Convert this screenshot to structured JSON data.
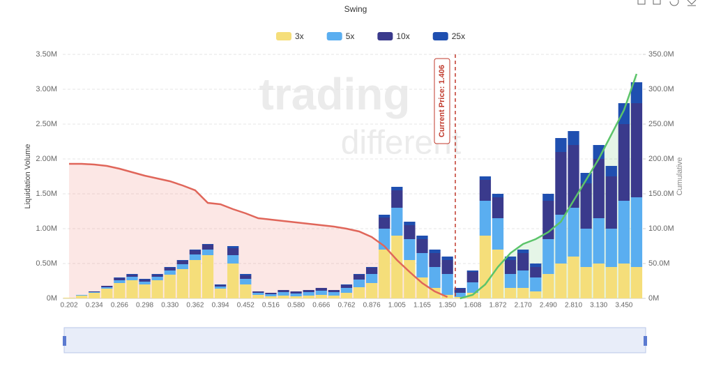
{
  "chart_data": {
    "type": "bar",
    "title": "Swing",
    "y_label": "Liquidation Volume",
    "y2_label": "Cumulative",
    "current_price_label": "Current Price: 1.406",
    "watermark": [
      "trading",
      "different"
    ],
    "stacked": true,
    "categories": [
      "0.202",
      null,
      "0.234",
      null,
      "0.266",
      null,
      "0.298",
      null,
      "0.330",
      null,
      "0.362",
      null,
      "0.394",
      null,
      "0.452",
      null,
      "0.516",
      null,
      "0.580",
      null,
      "0.666",
      null,
      "0.762",
      null,
      "0.876",
      null,
      "1.005",
      null,
      "1.165",
      null,
      "1.350",
      null,
      "1.608",
      null,
      "1.872",
      null,
      "2.170",
      null,
      "2.490",
      null,
      "2.810",
      null,
      "3.130",
      null,
      "3.450",
      null
    ],
    "ylim": [
      0,
      3.5
    ],
    "yticks": [
      {
        "value": 0,
        "label": "0M"
      },
      {
        "value": 0.5,
        "label": "0.50M"
      },
      {
        "value": 1,
        "label": "1.00M"
      },
      {
        "value": 1.5,
        "label": "1.50M"
      },
      {
        "value": 2,
        "label": "2.00M"
      },
      {
        "value": 2.5,
        "label": "2.50M"
      },
      {
        "value": 3,
        "label": "3.00M"
      },
      {
        "value": 3.5,
        "label": "3.50M"
      }
    ],
    "y2lim": [
      0,
      350
    ],
    "y2ticks": [
      {
        "value": 0,
        "label": "0M"
      },
      {
        "value": 50,
        "label": "50.0M"
      },
      {
        "value": 100,
        "label": "100.0M"
      },
      {
        "value": 150,
        "label": "150.0M"
      },
      {
        "value": 200,
        "label": "200.0M"
      },
      {
        "value": 250,
        "label": "250.0M"
      },
      {
        "value": 300,
        "label": "300.0M"
      },
      {
        "value": 350,
        "label": "350.0M"
      }
    ],
    "grid": true,
    "series": [
      {
        "name": "3x",
        "color": "#f5de7a",
        "values": [
          0.01,
          0.04,
          0.08,
          0.14,
          0.22,
          0.26,
          0.2,
          0.26,
          0.34,
          0.42,
          0.55,
          0.62,
          0.14,
          0.5,
          0.2,
          0.05,
          0.03,
          0.04,
          0.03,
          0.04,
          0.05,
          0.04,
          0.08,
          0.16,
          0.22,
          0.7,
          0.9,
          0.55,
          0.3,
          0.15,
          0.05,
          0.02,
          0.08,
          0.9,
          0.7,
          0.15,
          0.15,
          0.1,
          0.35,
          0.5,
          0.6,
          0.45,
          0.5,
          0.45,
          0.5,
          0.45
        ]
      },
      {
        "name": "5x",
        "color": "#5aaef0",
        "values": [
          0,
          0.01,
          0.01,
          0.02,
          0.04,
          0.05,
          0.04,
          0.05,
          0.06,
          0.07,
          0.08,
          0.08,
          0.03,
          0.12,
          0.08,
          0.03,
          0.03,
          0.05,
          0.04,
          0.05,
          0.06,
          0.05,
          0.07,
          0.11,
          0.13,
          0.3,
          0.4,
          0.3,
          0.35,
          0.3,
          0.3,
          0.06,
          0.15,
          0.5,
          0.45,
          0.2,
          0.25,
          0.2,
          0.5,
          0.7,
          0.7,
          0.55,
          0.65,
          0.55,
          0.9,
          1.0
        ]
      },
      {
        "name": "10x",
        "color": "#3a3a8c",
        "values": [
          0,
          0,
          0.01,
          0.02,
          0.03,
          0.03,
          0.03,
          0.03,
          0.04,
          0.05,
          0.06,
          0.07,
          0.02,
          0.1,
          0.05,
          0.02,
          0.02,
          0.03,
          0.03,
          0.03,
          0.04,
          0.03,
          0.04,
          0.07,
          0.09,
          0.16,
          0.25,
          0.2,
          0.2,
          0.2,
          0.2,
          0.06,
          0.15,
          0.3,
          0.3,
          0.2,
          0.25,
          0.15,
          0.55,
          0.9,
          0.9,
          0.65,
          0.85,
          0.75,
          1.1,
          1.35
        ]
      },
      {
        "name": "25x",
        "color": "#1f4fb0",
        "values": [
          0,
          0,
          0,
          0,
          0.01,
          0.01,
          0.01,
          0.01,
          0.01,
          0.01,
          0.01,
          0.01,
          0.01,
          0.03,
          0.02,
          0,
          0,
          0,
          0,
          0,
          0,
          0,
          0.01,
          0.01,
          0.01,
          0.04,
          0.05,
          0.05,
          0.05,
          0.05,
          0.05,
          0.01,
          0.02,
          0.05,
          0.05,
          0.05,
          0.05,
          0.05,
          0.1,
          0.2,
          0.2,
          0.15,
          0.2,
          0.15,
          0.3,
          0.3
        ]
      }
    ],
    "cumulative": [
      {
        "color": "#e0665a",
        "fill": "rgba(240,120,110,0.18)",
        "axis": "y2",
        "values": [
          193,
          193,
          192,
          190,
          186,
          181,
          176,
          172,
          168,
          162,
          155,
          137,
          135,
          128,
          122,
          115,
          113,
          111,
          109,
          107,
          105,
          103,
          100,
          96,
          88,
          75,
          55,
          38,
          22,
          10,
          2,
          null,
          null,
          null,
          null,
          null,
          null,
          null,
          null,
          null,
          null,
          null,
          null,
          null,
          null,
          null
        ]
      },
      {
        "color": "#5cc46a",
        "fill": "rgba(110,200,120,0.18)",
        "axis": "y2",
        "values": [
          null,
          null,
          null,
          null,
          null,
          null,
          null,
          null,
          null,
          null,
          null,
          null,
          null,
          null,
          null,
          null,
          null,
          null,
          null,
          null,
          null,
          null,
          null,
          null,
          null,
          null,
          null,
          null,
          null,
          null,
          null,
          0,
          5,
          20,
          45,
          65,
          78,
          85,
          95,
          110,
          140,
          170,
          200,
          235,
          270,
          322
        ]
      }
    ]
  }
}
